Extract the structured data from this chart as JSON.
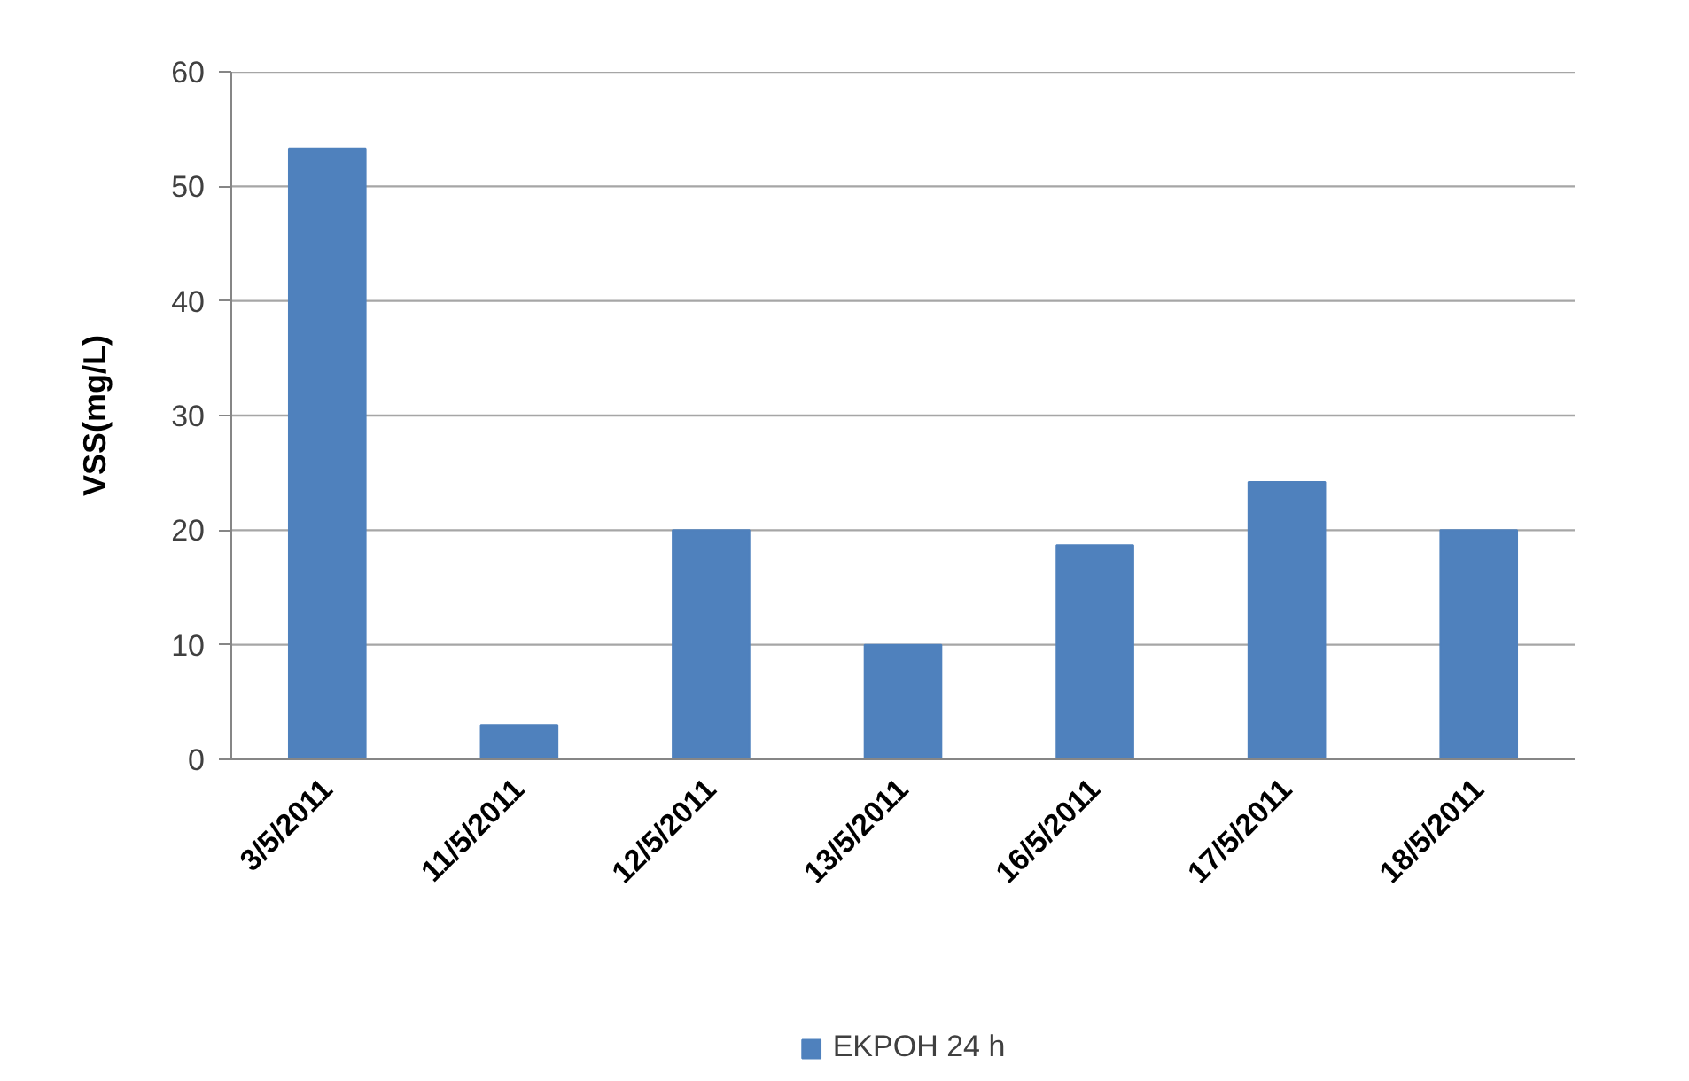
{
  "chart_data": {
    "type": "bar",
    "ylabel": "VSS(mg/L)",
    "categories": [
      "3/5/2011",
      "11/5/2011",
      "12/5/2011",
      "13/5/2011",
      "16/5/2011",
      "17/5/2011",
      "18/5/2011"
    ],
    "series": [
      {
        "name": "ΕΚΡΟΗ 24 h",
        "color": "#4f81bd",
        "values": [
          53.3,
          3,
          20,
          10,
          18.7,
          24.2,
          20
        ]
      }
    ],
    "ylim": [
      0,
      60
    ],
    "yticks": [
      0,
      10,
      20,
      30,
      40,
      50,
      60
    ],
    "grid": "y",
    "legend": "bottom"
  }
}
